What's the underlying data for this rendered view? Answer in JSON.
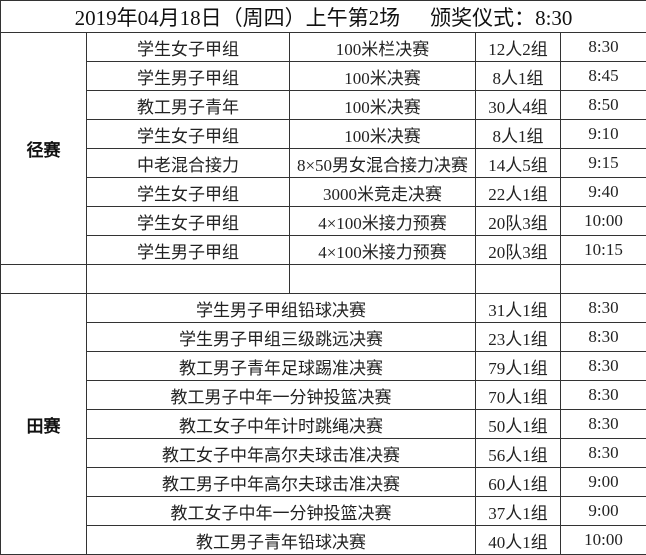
{
  "title": {
    "date_session": "2019年04月18日（周四）上午第2场",
    "award": "颁奖仪式：8:30"
  },
  "track": {
    "category": "径赛",
    "rows": [
      {
        "group": "学生女子甲组",
        "event": "100米栏决赛",
        "participants": "12人2组",
        "time": "8:30"
      },
      {
        "group": "学生男子甲组",
        "event": "100米决赛",
        "participants": "8人1组",
        "time": "8:45"
      },
      {
        "group": "教工男子青年",
        "event": "100米决赛",
        "participants": "30人4组",
        "time": "8:50"
      },
      {
        "group": "学生女子甲组",
        "event": "100米决赛",
        "participants": "8人1组",
        "time": "9:10"
      },
      {
        "group": "中老混合接力",
        "event": "8×50男女混合接力决赛",
        "participants": "14人5组",
        "time": "9:15"
      },
      {
        "group": "学生女子甲组",
        "event": "3000米竞走决赛",
        "participants": "22人1组",
        "time": "9:40"
      },
      {
        "group": "学生女子甲组",
        "event": "4×100米接力预赛",
        "participants": "20队3组",
        "time": "10:00"
      },
      {
        "group": "学生男子甲组",
        "event": "4×100米接力预赛",
        "participants": "20队3组",
        "time": "10:15"
      }
    ]
  },
  "field": {
    "category": "田赛",
    "rows": [
      {
        "event": "学生男子甲组铅球决赛",
        "participants": "31人1组",
        "time": "8:30"
      },
      {
        "event": "学生男子甲组三级跳远决赛",
        "participants": "23人1组",
        "time": "8:30"
      },
      {
        "event": "教工男子青年足球踢准决赛",
        "participants": "79人1组",
        "time": "8:30"
      },
      {
        "event": "教工男子中年一分钟投篮决赛",
        "participants": "70人1组",
        "time": "8:30"
      },
      {
        "event": "教工女子中年计时跳绳决赛",
        "participants": "50人1组",
        "time": "8:30"
      },
      {
        "event": "教工女子中年高尔夫球击准决赛",
        "participants": "56人1组",
        "time": "8:30"
      },
      {
        "event": "教工男子中年高尔夫球击准决赛",
        "participants": "60人1组",
        "time": "9:00"
      },
      {
        "event": "教工女子中年一分钟投篮决赛",
        "participants": "37人1组",
        "time": "9:00"
      },
      {
        "event": "教工男子青年铅球决赛",
        "participants": "40人1组",
        "time": "10:00"
      }
    ]
  }
}
